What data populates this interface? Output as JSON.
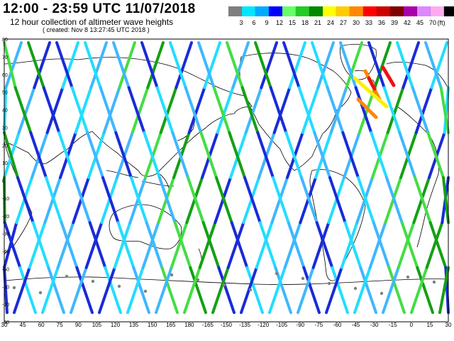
{
  "header": {
    "title": "12:00 - 23:59 UTC 11/07/2018",
    "subtitle": "12 hour collection of altimeter wave heights",
    "created": "( created: Nov  8 13:27:45 UTC 2018 )"
  },
  "legend": {
    "colors": [
      "#7f7f7f",
      "#00e5ff",
      "#00aaff",
      "#0000ff",
      "#66ff66",
      "#22cc22",
      "#008800",
      "#ffff00",
      "#ffcc00",
      "#ff8800",
      "#ff0000",
      "#cc0000",
      "#800000",
      "#aa00aa",
      "#dd88ff",
      "#ffaaee",
      "#000000"
    ],
    "labels": [
      "3",
      "6",
      "9",
      "12",
      "15",
      "18",
      "21",
      "24",
      "27",
      "30",
      "33",
      "36",
      "39",
      "42",
      "45",
      "70",
      "(ft)"
    ]
  },
  "axes": {
    "lat_labels": [
      "80",
      "70",
      "60",
      "50",
      "40",
      "30",
      "20",
      "10",
      "0",
      "-10",
      "-20",
      "-30",
      "-40",
      "-50",
      "-60",
      "-70",
      "-80"
    ],
    "lon_labels": [
      "30",
      "45",
      "60",
      "75",
      "90",
      "105",
      "120",
      "135",
      "150",
      "165",
      "180",
      "-165",
      "-150",
      "-135",
      "-120",
      "-105",
      "-90",
      "-75",
      "-60",
      "-45",
      "-30",
      "-15",
      "0",
      "15",
      "30"
    ]
  },
  "tracks_colors": {
    "cyan": "#22ddff",
    "light_blue": "#3fb7ff",
    "blue": "#1a2bd8",
    "green": "#44dd44",
    "dark_green": "#14a014",
    "yellow": "#ffee00",
    "orange": "#ff8800",
    "red": "#ee1111",
    "grey": "#7f7f7f",
    "coast": "#000000"
  }
}
